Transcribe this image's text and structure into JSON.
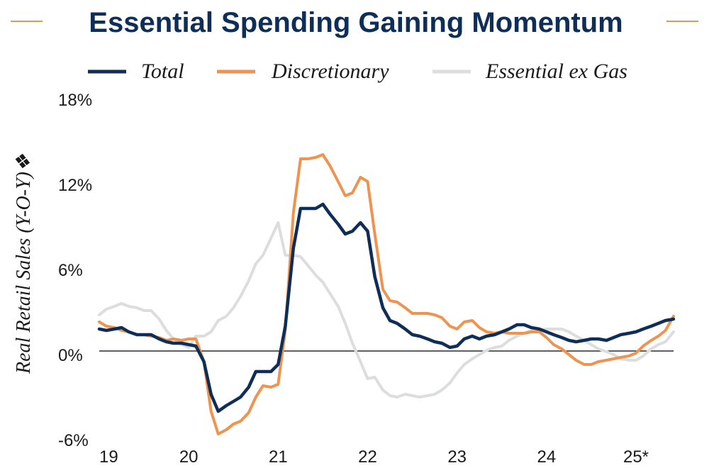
{
  "chart_data": {
    "type": "line",
    "title": "Essential Spending Gaining Momentum",
    "ylabel": "Real Retail Sales (Y-O-Y)❖",
    "xlabel": "",
    "ylim": [
      -6,
      18
    ],
    "y_ticks": [
      -6,
      0,
      6,
      12,
      18
    ],
    "y_tick_labels": [
      "-6%",
      "0%",
      "6%",
      "12%",
      "18%"
    ],
    "x_range": [
      2019.0,
      2025.42
    ],
    "x_ticks": [
      2019,
      2020,
      2021,
      2022,
      2023,
      2024,
      2025
    ],
    "x_tick_labels": [
      "19",
      "20",
      "21",
      "22",
      "23",
      "24",
      "25*"
    ],
    "grid": false,
    "legend_position": "top",
    "series": [
      {
        "name": "Total",
        "color": "#0f2e57",
        "x": [
          2019.0,
          2019.08,
          2019.17,
          2019.25,
          2019.33,
          2019.42,
          2019.5,
          2019.58,
          2019.67,
          2019.75,
          2019.83,
          2019.92,
          2020.0,
          2020.08,
          2020.17,
          2020.25,
          2020.33,
          2020.42,
          2020.5,
          2020.58,
          2020.67,
          2020.75,
          2020.83,
          2020.92,
          2021.0,
          2021.08,
          2021.17,
          2021.25,
          2021.33,
          2021.42,
          2021.5,
          2021.58,
          2021.67,
          2021.75,
          2021.83,
          2021.92,
          2022.0,
          2022.08,
          2022.17,
          2022.25,
          2022.33,
          2022.42,
          2022.5,
          2022.58,
          2022.67,
          2022.75,
          2022.83,
          2022.92,
          2023.0,
          2023.08,
          2023.17,
          2023.25,
          2023.33,
          2023.42,
          2023.5,
          2023.58,
          2023.67,
          2023.75,
          2023.83,
          2023.92,
          2024.0,
          2024.08,
          2024.17,
          2024.25,
          2024.33,
          2024.42,
          2024.5,
          2024.58,
          2024.67,
          2024.75,
          2024.83,
          2024.92,
          2025.0,
          2025.08,
          2025.17,
          2025.25,
          2025.33,
          2025.42
        ],
        "values": [
          1.8,
          1.7,
          1.8,
          1.9,
          1.6,
          1.4,
          1.4,
          1.4,
          1.1,
          0.9,
          0.8,
          0.8,
          0.7,
          0.6,
          -0.5,
          -2.8,
          -4.0,
          -3.6,
          -3.3,
          -3.0,
          -2.3,
          -1.2,
          -1.2,
          -1.2,
          -0.7,
          2.0,
          7.5,
          10.3,
          10.3,
          10.3,
          10.6,
          9.9,
          9.2,
          8.5,
          8.7,
          9.3,
          8.7,
          5.5,
          3.3,
          2.4,
          2.2,
          1.8,
          1.4,
          1.3,
          1.1,
          0.9,
          0.8,
          0.5,
          0.6,
          1.1,
          1.3,
          1.1,
          1.3,
          1.4,
          1.6,
          1.8,
          2.1,
          2.1,
          1.9,
          1.8,
          1.6,
          1.4,
          1.2,
          1.0,
          0.9,
          1.0,
          1.1,
          1.1,
          1.0,
          1.2,
          1.4,
          1.5,
          1.6,
          1.8,
          2.0,
          2.2,
          2.4,
          2.5
        ]
      },
      {
        "name": "Discretionary",
        "color": "#ee9450",
        "x": [
          2019.0,
          2019.08,
          2019.17,
          2019.25,
          2019.33,
          2019.42,
          2019.5,
          2019.58,
          2019.67,
          2019.75,
          2019.83,
          2019.92,
          2020.0,
          2020.08,
          2020.17,
          2020.25,
          2020.33,
          2020.42,
          2020.5,
          2020.58,
          2020.67,
          2020.75,
          2020.83,
          2020.92,
          2021.0,
          2021.08,
          2021.17,
          2021.25,
          2021.33,
          2021.42,
          2021.5,
          2021.58,
          2021.67,
          2021.75,
          2021.83,
          2021.92,
          2022.0,
          2022.08,
          2022.17,
          2022.25,
          2022.33,
          2022.42,
          2022.5,
          2022.58,
          2022.67,
          2022.75,
          2022.83,
          2022.92,
          2023.0,
          2023.08,
          2023.17,
          2023.25,
          2023.33,
          2023.42,
          2023.5,
          2023.58,
          2023.67,
          2023.75,
          2023.83,
          2023.92,
          2024.0,
          2024.08,
          2024.17,
          2024.25,
          2024.33,
          2024.42,
          2024.5,
          2024.58,
          2024.67,
          2024.75,
          2024.83,
          2024.92,
          2025.0,
          2025.08,
          2025.17,
          2025.25,
          2025.33,
          2025.42
        ],
        "values": [
          2.3,
          2.0,
          1.9,
          1.7,
          1.6,
          1.4,
          1.4,
          1.3,
          1.2,
          1.0,
          1.1,
          1.0,
          1.1,
          1.1,
          -0.5,
          -4.0,
          -5.6,
          -5.3,
          -4.9,
          -4.7,
          -4.1,
          -3.0,
          -2.2,
          -2.3,
          -2.1,
          1.7,
          10.0,
          13.8,
          13.8,
          13.9,
          14.1,
          13.3,
          12.2,
          11.2,
          11.4,
          12.5,
          12.2,
          8.5,
          4.6,
          3.8,
          3.7,
          3.3,
          2.9,
          2.9,
          2.9,
          2.8,
          2.6,
          2.0,
          1.8,
          2.3,
          2.4,
          1.9,
          1.6,
          1.5,
          1.6,
          1.5,
          1.5,
          1.5,
          1.6,
          1.6,
          1.2,
          0.7,
          0.4,
          0.0,
          -0.4,
          -0.7,
          -0.7,
          -0.5,
          -0.4,
          -0.3,
          -0.2,
          -0.1,
          0.1,
          0.6,
          1.0,
          1.3,
          1.7,
          2.7
        ]
      },
      {
        "name": "Essential ex Gas",
        "color": "#dcdedd",
        "x": [
          2019.0,
          2019.08,
          2019.17,
          2019.25,
          2019.33,
          2019.42,
          2019.5,
          2019.58,
          2019.67,
          2019.75,
          2019.83,
          2019.92,
          2020.0,
          2020.08,
          2020.17,
          2020.25,
          2020.33,
          2020.42,
          2020.5,
          2020.58,
          2020.67,
          2020.75,
          2020.83,
          2020.92,
          2021.0,
          2021.08,
          2021.17,
          2021.25,
          2021.33,
          2021.42,
          2021.5,
          2021.58,
          2021.67,
          2021.75,
          2021.83,
          2021.92,
          2022.0,
          2022.08,
          2022.17,
          2022.25,
          2022.33,
          2022.42,
          2022.5,
          2022.58,
          2022.67,
          2022.75,
          2022.83,
          2022.92,
          2023.0,
          2023.08,
          2023.17,
          2023.25,
          2023.33,
          2023.42,
          2023.5,
          2023.58,
          2023.67,
          2023.75,
          2023.83,
          2023.92,
          2024.0,
          2024.08,
          2024.17,
          2024.25,
          2024.33,
          2024.42,
          2024.5,
          2024.58,
          2024.67,
          2024.75,
          2024.83,
          2024.92,
          2025.0,
          2025.08,
          2025.17,
          2025.25,
          2025.33,
          2025.42
        ],
        "values": [
          2.8,
          3.2,
          3.4,
          3.6,
          3.4,
          3.3,
          3.1,
          3.1,
          2.5,
          1.7,
          1.1,
          0.7,
          0.5,
          1.3,
          1.3,
          1.6,
          2.4,
          2.7,
          3.3,
          4.1,
          5.2,
          6.4,
          7.0,
          8.2,
          9.3,
          7.0,
          7.0,
          6.9,
          6.3,
          5.6,
          5.1,
          4.3,
          3.4,
          2.2,
          0.8,
          -0.5,
          -1.7,
          -1.6,
          -2.5,
          -2.9,
          -3.0,
          -2.8,
          -2.9,
          -3.0,
          -2.9,
          -2.8,
          -2.5,
          -2.0,
          -1.3,
          -0.7,
          -0.3,
          0.0,
          0.3,
          0.5,
          0.6,
          1.0,
          1.3,
          1.5,
          1.7,
          1.7,
          1.8,
          1.8,
          1.8,
          1.6,
          1.3,
          1.0,
          0.7,
          0.4,
          0.2,
          0.0,
          -0.3,
          -0.4,
          -0.4,
          -0.1,
          0.4,
          0.7,
          0.9,
          1.6
        ]
      }
    ]
  }
}
